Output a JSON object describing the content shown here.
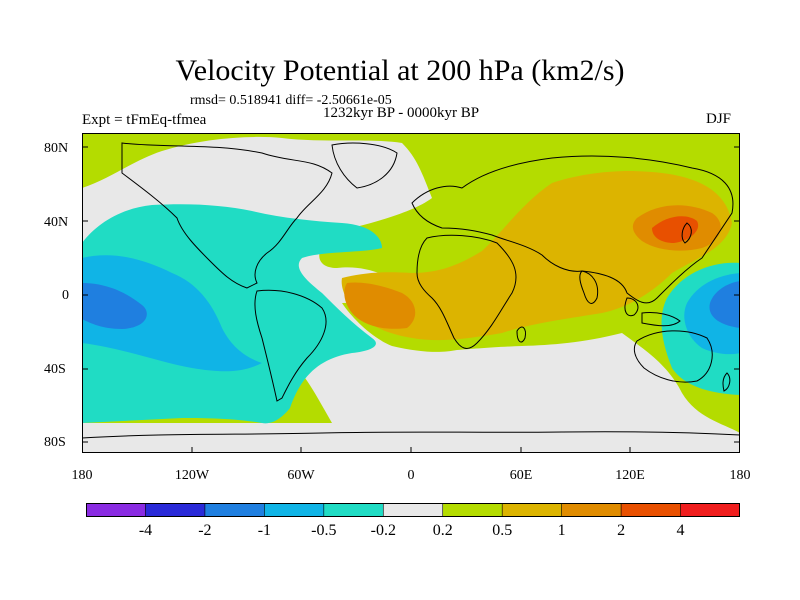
{
  "title": "Velocity Potential at 200 hPa (km2/s)",
  "stats": "rmsd= 0.518941 diff= -2.50661e-05",
  "experiment": "Expt = tFmEq-tfmea",
  "period": "1232kyr BP - 0000kyr BP",
  "season": "DJF",
  "colors": {
    "neg4": "#8a2be2",
    "neg2": "#2a2ad8",
    "neg1": "#1f7fe0",
    "neg05": "#10b4e6",
    "neg02": "#20dcc4",
    "zero": "#e8e8e8",
    "pos02": "#b4dc00",
    "pos05": "#dcb400",
    "pos1": "#e08c00",
    "pos2": "#e85000",
    "pos4": "#f01e1e",
    "coast": "#000000"
  },
  "axes": {
    "lat_ticks": [
      "80N",
      "40N",
      "0",
      "40S",
      "80S"
    ],
    "lon_ticks": [
      "180",
      "120W",
      "60W",
      "0",
      "60E",
      "120E",
      "180"
    ]
  },
  "colorbar": {
    "labels": [
      "-4",
      "-2",
      "-1",
      "-0.5",
      "-0.2",
      "0.2",
      "0.5",
      "1",
      "2",
      "4"
    ],
    "swatches": [
      "#8a2be2",
      "#2a2ad8",
      "#1f7fe0",
      "#10b4e6",
      "#20dcc4",
      "#e8e8e8",
      "#b4dc00",
      "#dcb400",
      "#e08c00",
      "#e85000",
      "#f01e1e"
    ]
  }
}
